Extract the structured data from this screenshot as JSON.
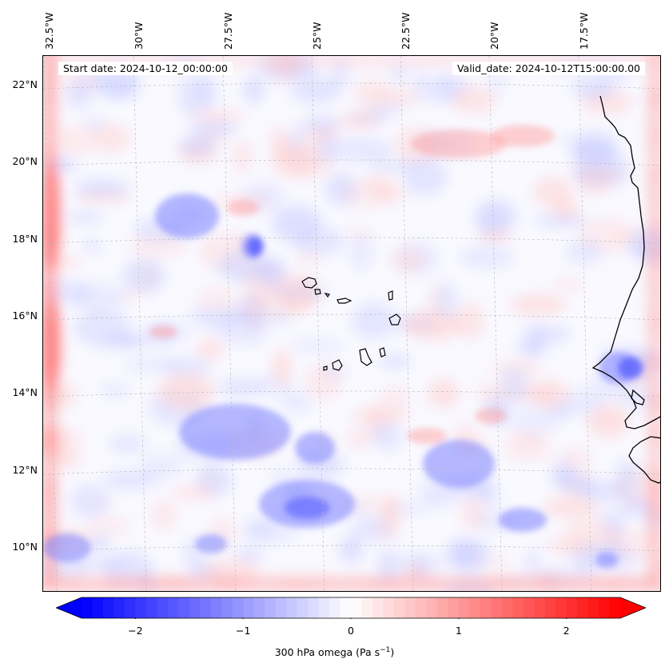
{
  "map": {
    "start_date_label": "Start date: 2024-10-12_00:00:00",
    "valid_date_label": "Valid_date: 2024-10-12T15:00:00.00",
    "longitude_labels": [
      "32.5°W",
      "30°W",
      "27.5°W",
      "25°W",
      "22.5°W",
      "20°W",
      "17.5°W"
    ],
    "latitude_labels": [
      "22°N",
      "20°N",
      "18°N",
      "16°N",
      "14°N",
      "12°N",
      "10°N"
    ],
    "gridlines": true
  },
  "colorbar": {
    "ticks": [
      "−2",
      "−1",
      "0",
      "1",
      "2"
    ],
    "label_main": "300 hPa omega (Pa s",
    "label_sup": "−1",
    "label_close": ")",
    "colors": {
      "negative": "#0000ff",
      "zero": "#ffffff",
      "positive": "#ff0000"
    }
  }
}
